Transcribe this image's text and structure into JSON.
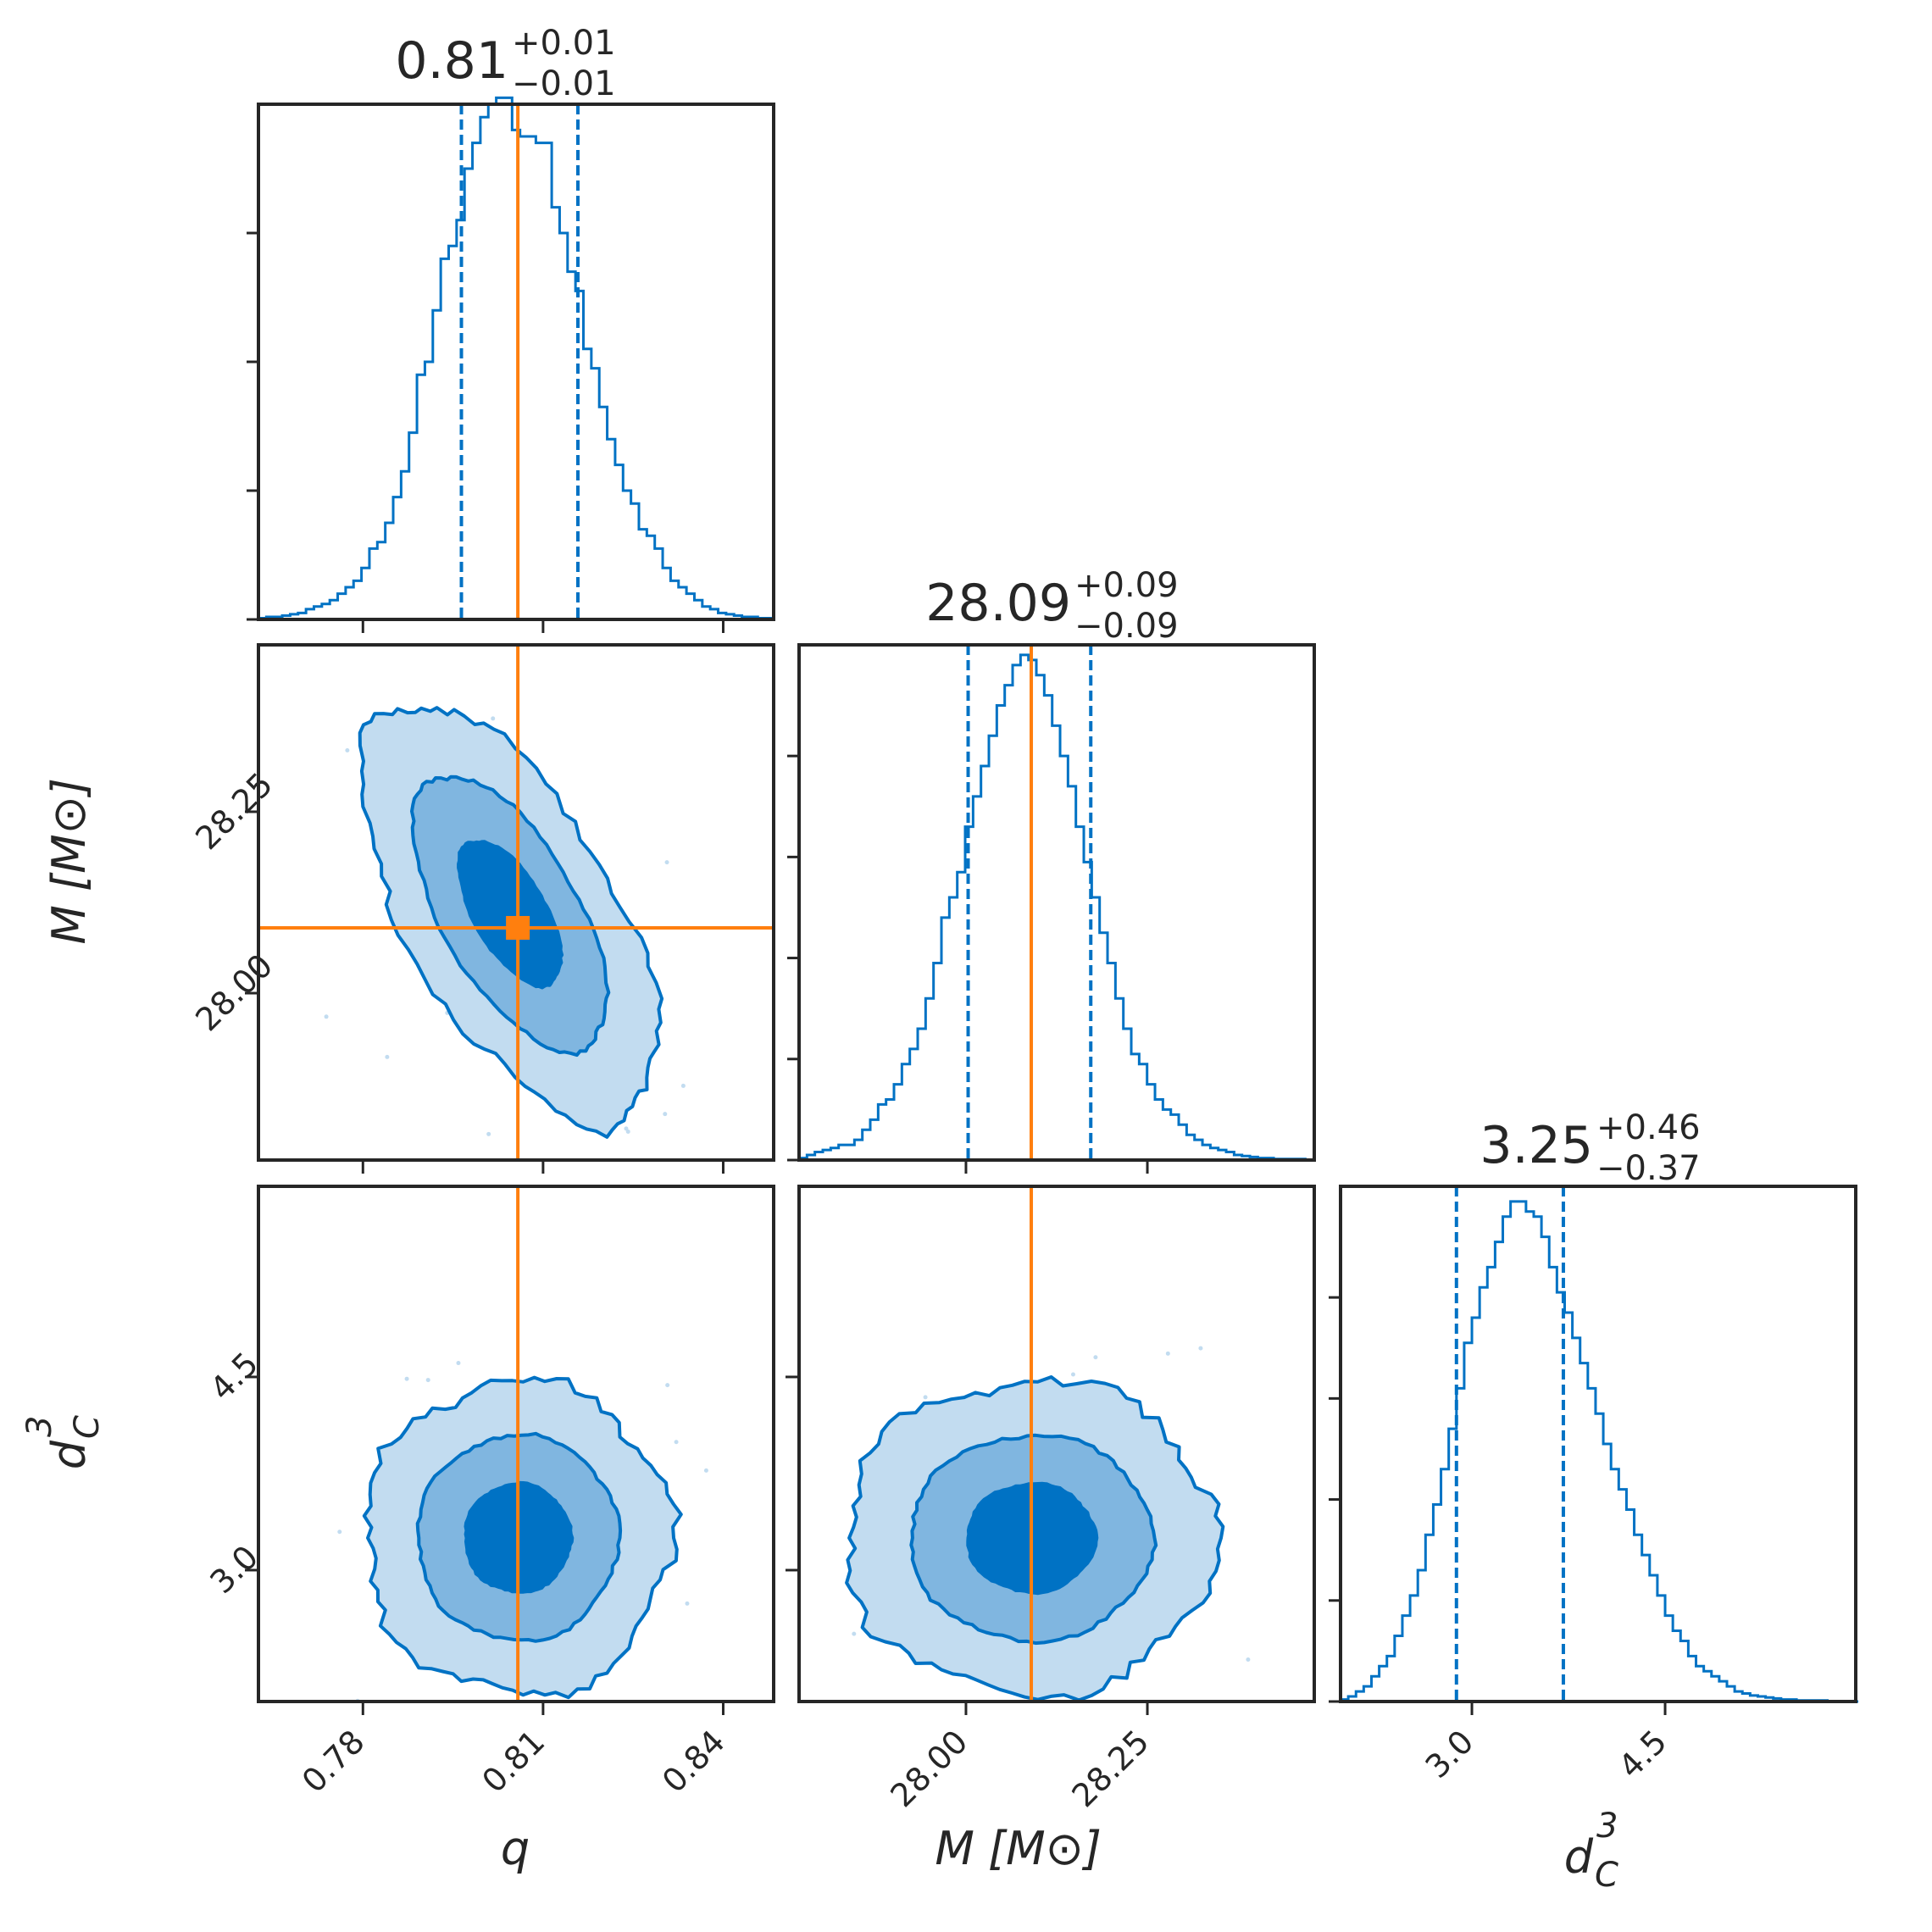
{
  "chart_data": {
    "type": "corner",
    "colors": {
      "posterior": "#0072c4",
      "truth": "#ff7f0e",
      "frame": "#262626",
      "fill_levels": [
        "#c2dcf0",
        "#80b6e0",
        "#0072c4"
      ]
    },
    "parameters": [
      {
        "key": "q",
        "label_main": "q",
        "label_sub": "",
        "label_sup": "",
        "label_bracket": "",
        "range": [
          0.7626,
          0.8484
        ],
        "ticks": [
          0.78,
          0.81,
          0.84
        ],
        "tick_labels": [
          "0.78",
          "0.81",
          "0.84"
        ],
        "truth": 0.8058,
        "median": 0.8058,
        "quantiles": [
          0.7964,
          0.8158
        ],
        "title": {
          "value": "0.81",
          "plus": "+0.01",
          "minus": "−0.01"
        }
      },
      {
        "key": "M",
        "label_main": "M",
        "label_sub": "",
        "label_sup": "",
        "label_bracket": "[M⊙]",
        "range": [
          27.77,
          28.48
        ],
        "ticks": [
          28.0,
          28.25
        ],
        "tick_labels": [
          "28.00",
          "28.25"
        ],
        "truth": 28.09,
        "median": 28.09,
        "quantiles": [
          28.003,
          28.172
        ],
        "title": {
          "value": "28.09",
          "plus": "+0.09",
          "minus": "−0.09"
        }
      },
      {
        "key": "d",
        "label_main": "d",
        "label_sub": "C",
        "label_sup": "3",
        "label_bracket": "",
        "range": [
          1.98,
          5.98
        ],
        "ticks": [
          3.0,
          4.5
        ],
        "tick_labels": [
          "3.0",
          "4.5"
        ],
        "truth": null,
        "median": 3.25,
        "quantiles": [
          2.88,
          3.71
        ],
        "title": {
          "value": "3.25",
          "plus": "+0.46",
          "minus": "−0.37"
        }
      }
    ],
    "hist_ymax": [
      4.0,
      5.1,
      5.1
    ],
    "histograms": {
      "q": {
        "start": 0.7626,
        "width": 0.00132,
        "counts": [
          0.01,
          0.02,
          0.02,
          0.03,
          0.04,
          0.05,
          0.08,
          0.1,
          0.12,
          0.15,
          0.2,
          0.25,
          0.3,
          0.4,
          0.55,
          0.6,
          0.75,
          0.95,
          1.15,
          1.45,
          1.9,
          2.0,
          2.4,
          2.8,
          2.9,
          3.1,
          3.5,
          3.7,
          3.9,
          4.0,
          4.05,
          4.05,
          3.8,
          3.75,
          3.75,
          3.7,
          3.7,
          3.2,
          3.0,
          2.7,
          2.55,
          2.1,
          1.95,
          1.65,
          1.4,
          1.2,
          1.0,
          0.9,
          0.7,
          0.65,
          0.55,
          0.4,
          0.3,
          0.25,
          0.2,
          0.15,
          0.1,
          0.08,
          0.05,
          0.04,
          0.03,
          0.02,
          0.02,
          0.01,
          0.01
        ]
      },
      "M": {
        "start": 27.77,
        "width": 0.0109,
        "counts": [
          0.02,
          0.05,
          0.08,
          0.1,
          0.12,
          0.15,
          0.15,
          0.2,
          0.3,
          0.4,
          0.55,
          0.6,
          0.75,
          0.95,
          1.1,
          1.3,
          1.6,
          1.95,
          2.4,
          2.6,
          2.85,
          3.3,
          3.6,
          3.9,
          4.2,
          4.5,
          4.7,
          4.9,
          5.0,
          4.95,
          4.8,
          4.6,
          4.3,
          4.0,
          3.7,
          3.3,
          2.95,
          2.6,
          2.25,
          1.95,
          1.6,
          1.3,
          1.05,
          0.95,
          0.75,
          0.6,
          0.5,
          0.45,
          0.35,
          0.25,
          0.2,
          0.15,
          0.12,
          0.1,
          0.08,
          0.05,
          0.04,
          0.03,
          0.02,
          0.02,
          0.01,
          0.01,
          0.01,
          0.01,
          0.0
        ]
      },
      "d": {
        "start": 1.98,
        "width": 0.06,
        "counts": [
          0.02,
          0.05,
          0.1,
          0.15,
          0.25,
          0.35,
          0.45,
          0.65,
          0.85,
          1.05,
          1.3,
          1.65,
          1.95,
          2.3,
          2.7,
          3.1,
          3.55,
          3.8,
          4.1,
          4.3,
          4.55,
          4.8,
          4.95,
          4.95,
          4.85,
          4.8,
          4.6,
          4.3,
          4.05,
          3.85,
          3.6,
          3.35,
          3.1,
          2.85,
          2.55,
          2.3,
          2.1,
          1.9,
          1.65,
          1.45,
          1.25,
          1.05,
          0.85,
          0.7,
          0.6,
          0.45,
          0.35,
          0.3,
          0.25,
          0.2,
          0.15,
          0.1,
          0.08,
          0.06,
          0.05,
          0.04,
          0.03,
          0.02,
          0.02,
          0.01,
          0.01,
          0.01,
          0.01,
          0.0,
          0.0,
          0.0,
          0.0
        ]
      }
    },
    "contours_2d": [
      {
        "x": "q",
        "y": "M",
        "center": [
          0.8045,
          28.11
        ],
        "sigma": [
          0.0085,
          0.1
        ],
        "rho": -0.62,
        "levels": [
          1.0,
          1.9,
          2.9
        ]
      },
      {
        "x": "q",
        "y": "d",
        "center": [
          0.8058,
          3.25
        ],
        "sigma": [
          0.0088,
          0.42
        ],
        "rho": 0.0,
        "levels": [
          1.0,
          1.9,
          2.9
        ]
      },
      {
        "x": "M",
        "y": "d",
        "center": [
          28.09,
          3.25
        ],
        "sigma": [
          0.088,
          0.42
        ],
        "rho": 0.0,
        "levels": [
          1.0,
          1.9,
          2.9
        ]
      }
    ],
    "truth_point": {
      "x": "q",
      "y": "M"
    }
  }
}
